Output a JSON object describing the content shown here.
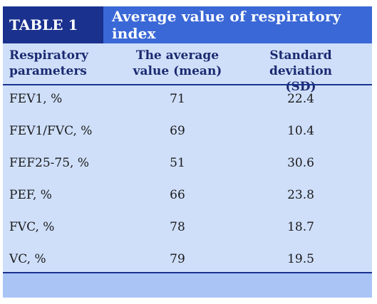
{
  "table": {
    "label": "TABLE 1",
    "title": "Average value of respiratory index",
    "headers": {
      "param_line1": "Respiratory",
      "param_line2": "parameters",
      "mean_line1": "The average",
      "mean_line2": "value (mean)",
      "sd_line1": "Standard deviation",
      "sd_line2": "(SD)"
    },
    "rows": [
      {
        "param": "FEV1, %",
        "mean": "71",
        "sd": "22.4"
      },
      {
        "param": "FEV1/FVC, %",
        "mean": "69",
        "sd": "10.4"
      },
      {
        "param": "FEF25-75, %",
        "mean": "51",
        "sd": "30.6"
      },
      {
        "param": "PEF, %",
        "mean": "66",
        "sd": "23.8"
      },
      {
        "param": "FVC, %",
        "mean": "78",
        "sd": "18.7"
      },
      {
        "param": "VC, %",
        "mean": "79",
        "sd": "19.5"
      }
    ],
    "colors": {
      "label_bg": "#1a318e",
      "title_bg": "#3a68d6",
      "body_bg": "#cfdffa",
      "footer_bg": "#a9c4f5",
      "header_text": "#1b2a70"
    }
  }
}
